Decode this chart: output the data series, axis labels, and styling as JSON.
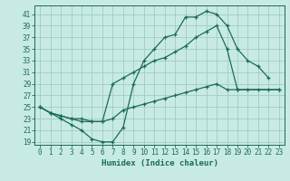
{
  "xlabel": "Humidex (Indice chaleur)",
  "background_color": "#c8eae4",
  "grid_color": "#a0ccc4",
  "line_color": "#1a6b5a",
  "xlim": [
    -0.5,
    23.5
  ],
  "ylim": [
    18.5,
    42.5
  ],
  "yticks": [
    19,
    21,
    23,
    25,
    27,
    29,
    31,
    33,
    35,
    37,
    39,
    41
  ],
  "xticks": [
    0,
    1,
    2,
    3,
    4,
    5,
    6,
    7,
    8,
    9,
    10,
    11,
    12,
    13,
    14,
    15,
    16,
    17,
    18,
    19,
    20,
    21,
    22,
    23
  ],
  "line1_x": [
    0,
    1,
    2,
    3,
    4,
    5,
    6,
    7,
    8,
    9,
    10,
    11,
    12,
    13,
    14,
    15,
    16,
    17,
    18,
    19,
    20,
    21,
    22
  ],
  "line1_y": [
    25,
    24,
    23,
    22,
    21,
    19.5,
    19,
    19.0,
    21.5,
    29,
    33,
    35,
    37,
    37.5,
    40.5,
    40.5,
    41.5,
    41.0,
    39,
    35,
    33,
    32,
    30
  ],
  "line2_x": [
    0,
    1,
    2,
    3,
    4,
    5,
    6,
    7,
    8,
    9,
    10,
    11,
    12,
    13,
    14,
    15,
    16,
    17,
    18,
    19,
    23
  ],
  "line2_y": [
    25,
    24,
    23.5,
    23,
    23,
    22.5,
    22.5,
    29,
    30,
    31,
    32,
    33,
    33.5,
    34.5,
    35.5,
    37,
    38,
    39,
    35,
    28,
    28
  ],
  "line3_x": [
    0,
    1,
    2,
    3,
    4,
    5,
    6,
    7,
    8,
    9,
    10,
    11,
    12,
    13,
    14,
    15,
    16,
    17,
    18,
    19,
    20,
    21,
    22,
    23
  ],
  "line3_y": [
    25,
    24,
    23.5,
    23,
    22.5,
    22.5,
    22.5,
    23,
    24.5,
    25,
    25.5,
    26,
    26.5,
    27,
    27.5,
    28,
    28.5,
    29,
    28,
    28,
    28,
    28,
    28,
    28
  ]
}
